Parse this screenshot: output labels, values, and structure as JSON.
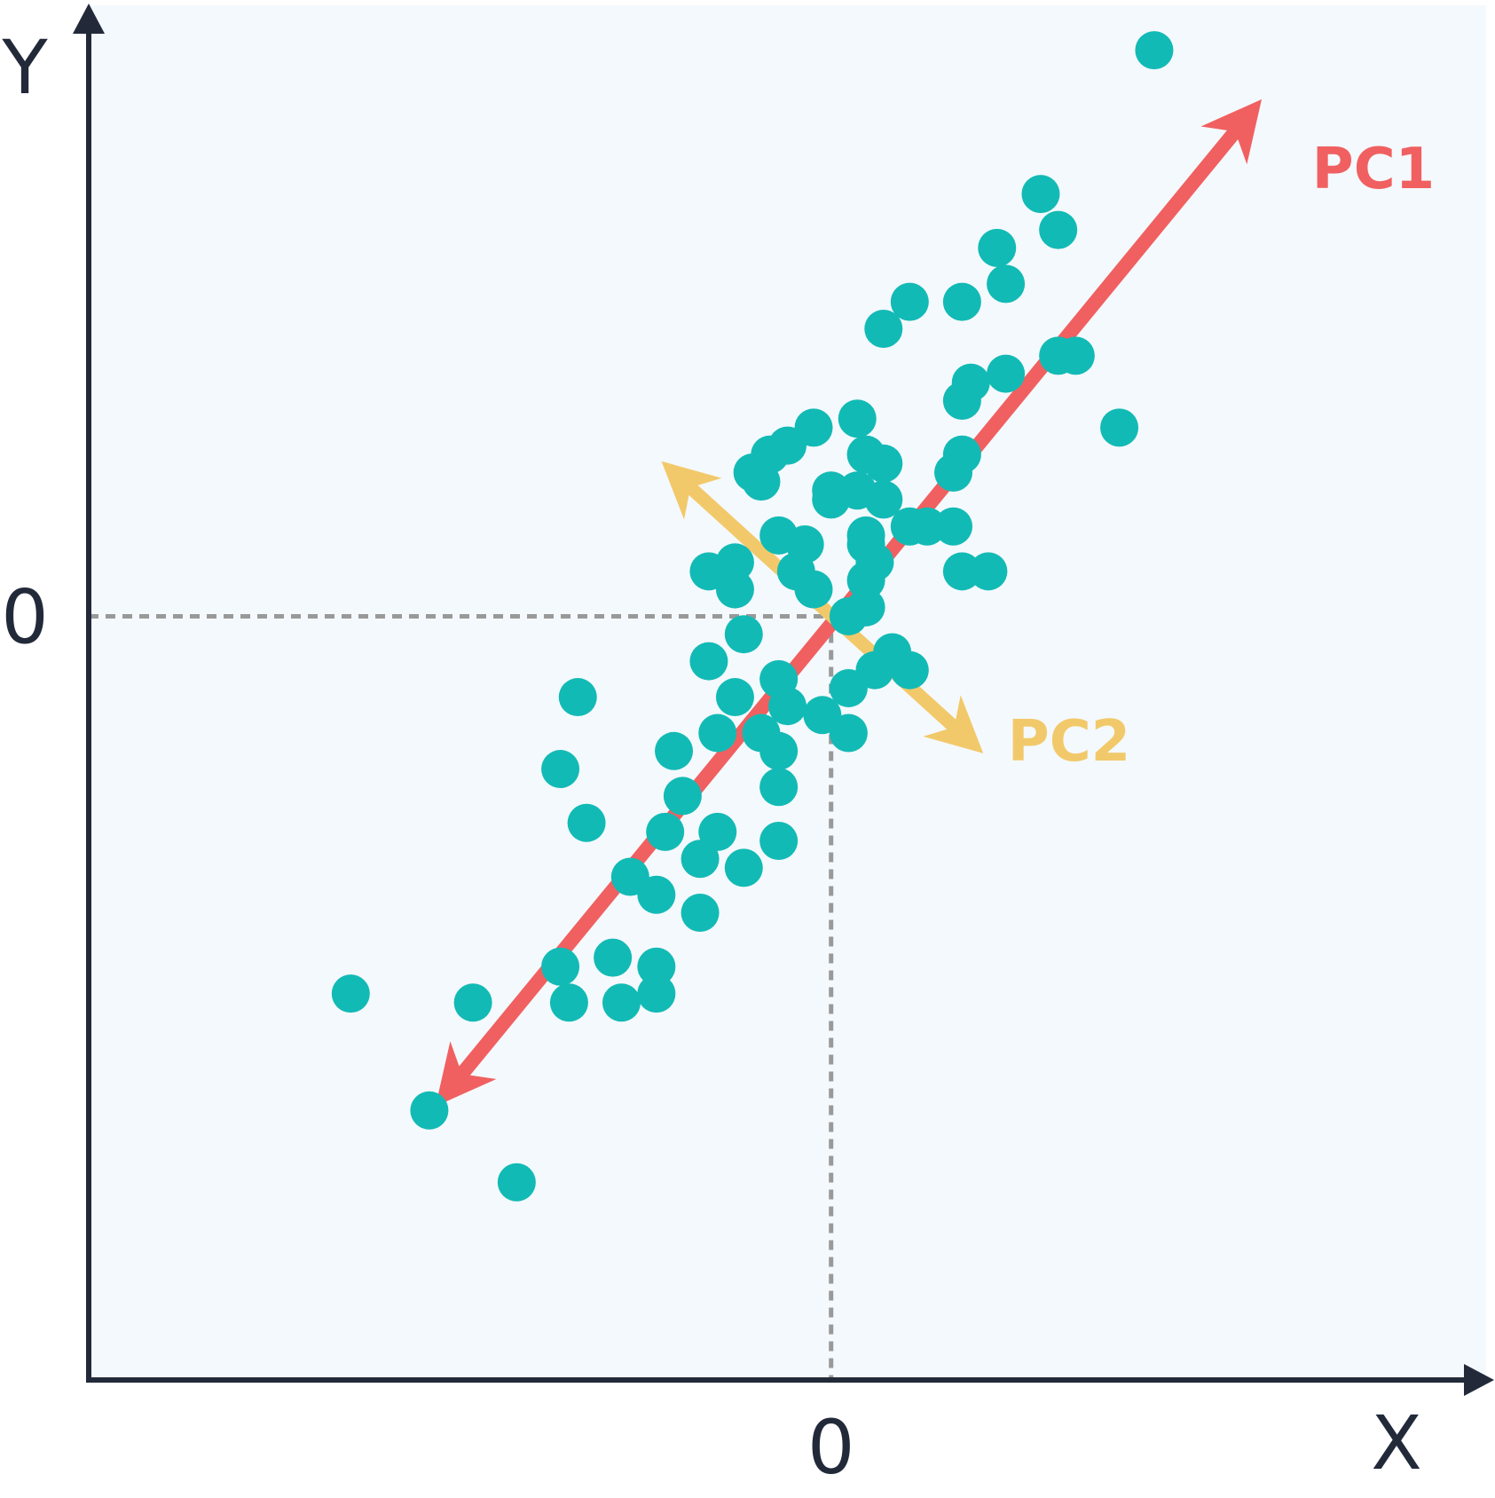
{
  "chart_data": {
    "type": "scatter",
    "title": "",
    "xlabel": "X",
    "ylabel": "Y",
    "xlim": [
      -8.5,
      7.5
    ],
    "ylim": [
      -8.5,
      6.8
    ],
    "x_ticks": [
      "0"
    ],
    "y_ticks": [
      "0"
    ],
    "colors": {
      "background": "#f4f9fd",
      "axis": "#222a3a",
      "points": "#12bab5",
      "pc1": "#f06060",
      "pc2": "#f2c96a",
      "guide": "#999999"
    },
    "components": [
      {
        "label": "PC1",
        "from": [
          -4.4,
          -5.3
        ],
        "to": [
          4.8,
          5.6
        ]
      },
      {
        "label": "PC2",
        "from": [
          -1.8,
          1.6
        ],
        "to": [
          1.6,
          -1.4
        ]
      }
    ],
    "points": [
      [
        3.7,
        6.3
      ],
      [
        2.4,
        4.7
      ],
      [
        2.6,
        4.3
      ],
      [
        1.9,
        4.1
      ],
      [
        2.0,
        3.7
      ],
      [
        0.9,
        3.5
      ],
      [
        0.6,
        3.2
      ],
      [
        1.5,
        3.5
      ],
      [
        2.8,
        2.9
      ],
      [
        2.6,
        2.9
      ],
      [
        2.0,
        2.7
      ],
      [
        1.6,
        2.6
      ],
      [
        1.5,
        2.4
      ],
      [
        3.3,
        2.1
      ],
      [
        0.3,
        2.2
      ],
      [
        0.4,
        1.8
      ],
      [
        0.6,
        1.7
      ],
      [
        -0.2,
        2.1
      ],
      [
        -0.5,
        1.9
      ],
      [
        -0.7,
        1.8
      ],
      [
        -0.9,
        1.6
      ],
      [
        -0.8,
        1.5
      ],
      [
        0.0,
        1.4
      ],
      [
        1.5,
        1.8
      ],
      [
        1.4,
        1.6
      ],
      [
        0.0,
        1.3
      ],
      [
        1.1,
        1.0
      ],
      [
        0.3,
        1.4
      ],
      [
        0.4,
        0.9
      ],
      [
        0.6,
        1.3
      ],
      [
        0.9,
        1.0
      ],
      [
        0.4,
        0.4
      ],
      [
        1.4,
        1.0
      ],
      [
        -0.6,
        0.9
      ],
      [
        -0.3,
        0.8
      ],
      [
        0.4,
        0.8
      ],
      [
        0.5,
        0.6
      ],
      [
        -1.4,
        0.5
      ],
      [
        -1.1,
        0.6
      ],
      [
        -1.1,
        0.3
      ],
      [
        -0.4,
        0.5
      ],
      [
        -0.2,
        0.3
      ],
      [
        1.5,
        0.5
      ],
      [
        1.8,
        0.5
      ],
      [
        0.4,
        0.1
      ],
      [
        0.2,
        0.0
      ],
      [
        -1.0,
        -0.2
      ],
      [
        -1.4,
        -0.5
      ],
      [
        -0.6,
        -0.7
      ],
      [
        0.7,
        -0.4
      ],
      [
        0.9,
        -0.6
      ],
      [
        0.5,
        -0.6
      ],
      [
        0.2,
        -0.8
      ],
      [
        -1.1,
        -0.9
      ],
      [
        -0.5,
        -1.0
      ],
      [
        -1.3,
        -1.3
      ],
      [
        -0.8,
        -1.3
      ],
      [
        -0.1,
        -1.1
      ],
      [
        0.2,
        -1.3
      ],
      [
        -0.6,
        -1.5
      ],
      [
        -1.8,
        -1.5
      ],
      [
        -2.9,
        -0.9
      ],
      [
        -3.1,
        -1.7
      ],
      [
        -1.7,
        -2.0
      ],
      [
        -2.8,
        -2.3
      ],
      [
        -0.6,
        -1.9
      ],
      [
        -1.3,
        -2.4
      ],
      [
        -0.6,
        -2.5
      ],
      [
        -1.9,
        -2.4
      ],
      [
        -1.5,
        -2.7
      ],
      [
        -1.0,
        -2.8
      ],
      [
        -2.3,
        -2.9
      ],
      [
        -2.0,
        -3.1
      ],
      [
        -1.5,
        -3.3
      ],
      [
        -3.1,
        -3.9
      ],
      [
        -2.5,
        -3.8
      ],
      [
        -2.0,
        -3.9
      ],
      [
        -3.0,
        -4.3
      ],
      [
        -2.4,
        -4.3
      ],
      [
        -2.0,
        -4.2
      ],
      [
        -4.1,
        -4.3
      ],
      [
        -5.5,
        -4.2
      ],
      [
        -4.6,
        -5.5
      ],
      [
        -3.6,
        -6.3
      ]
    ]
  }
}
